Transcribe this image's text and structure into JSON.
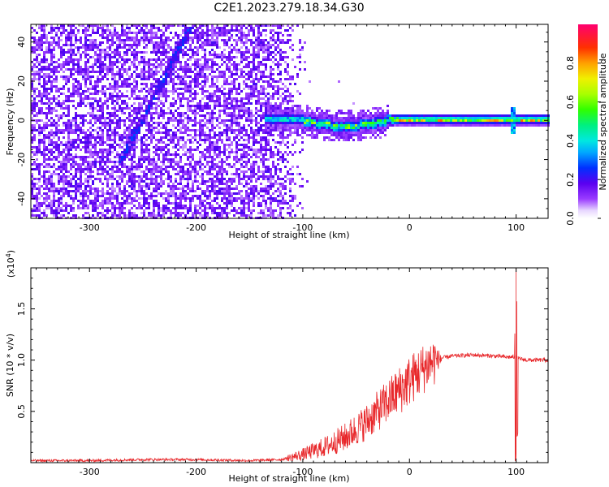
{
  "title": "C2E1.2023.279.18.34.G30",
  "chart_data": [
    {
      "type": "heatmap",
      "xlabel": "Height of straight line (km)",
      "ylabel": "Frequency (Hz)",
      "xlim": [
        -355,
        130
      ],
      "ylim": [
        -50,
        49
      ],
      "xticks": [
        -300,
        -200,
        -100,
        0,
        100
      ],
      "yticks": [
        -40,
        -20,
        0,
        20,
        40
      ],
      "colorbar": {
        "label": "Normalized spectral amplitude",
        "range": [
          0.0,
          1.0
        ],
        "ticks": [
          "0.0",
          "0.2",
          "0.4",
          "0.6",
          "0.8"
        ],
        "tick_values": [
          0.0,
          0.2,
          0.4,
          0.6,
          0.8
        ]
      },
      "features": {
        "carrier_line": {
          "frequency": 0,
          "x_start": -135,
          "x_end": 130
        },
        "drifting_trace": {
          "x_start": -268,
          "y_start": -18,
          "x_end": -205,
          "y_end": 48
        },
        "spike_x": 97
      }
    },
    {
      "type": "line",
      "xlabel": "Height of straight line (km)",
      "ylabel": "SNR (10 * v/v)",
      "multiplier": "(x10",
      "multiplier_exp": "4",
      "multiplier_close": ")",
      "xlim": [
        -355,
        130
      ],
      "ylim": [
        0,
        1.9
      ],
      "xticks": [
        -300,
        -200,
        -100,
        0,
        100
      ],
      "yticks": [
        "0.5",
        "1.0",
        "1.5"
      ],
      "ytick_values": [
        0.5,
        1.0,
        1.5
      ],
      "color": "#e8282b",
      "x": [
        -355,
        -300,
        -250,
        -200,
        -150,
        -120,
        -100,
        -80,
        -60,
        -40,
        -20,
        0,
        20,
        30,
        40,
        60,
        80,
        90,
        95,
        100,
        105,
        110,
        130
      ],
      "y": [
        0.02,
        0.02,
        0.03,
        0.03,
        0.02,
        0.03,
        0.08,
        0.15,
        0.25,
        0.4,
        0.6,
        0.8,
        0.98,
        1.02,
        1.04,
        1.05,
        1.04,
        1.03,
        1.03,
        1.03,
        1.01,
        1.0,
        1.0
      ],
      "noise_start": -115,
      "spike": {
        "x": 100,
        "y_max": 1.75,
        "y_min": 0.0
      }
    }
  ]
}
